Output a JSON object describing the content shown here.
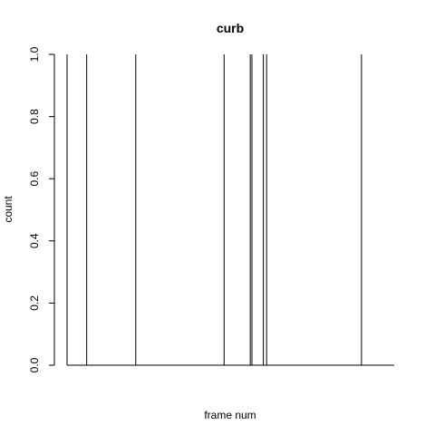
{
  "chart_data": {
    "type": "histogram",
    "title": "curb",
    "xlabel": "frame num",
    "ylabel": "count",
    "ylim": [
      0,
      1.0
    ],
    "yticks": [
      "0.0",
      "0.2",
      "0.4",
      "0.6",
      "0.8",
      "1.0"
    ],
    "xlim": [
      0,
      100
    ],
    "x": [
      0,
      6,
      21,
      48,
      56,
      56.5,
      60,
      61,
      90
    ],
    "values": [
      1,
      1,
      1,
      1,
      1,
      1,
      1,
      1,
      1
    ]
  }
}
